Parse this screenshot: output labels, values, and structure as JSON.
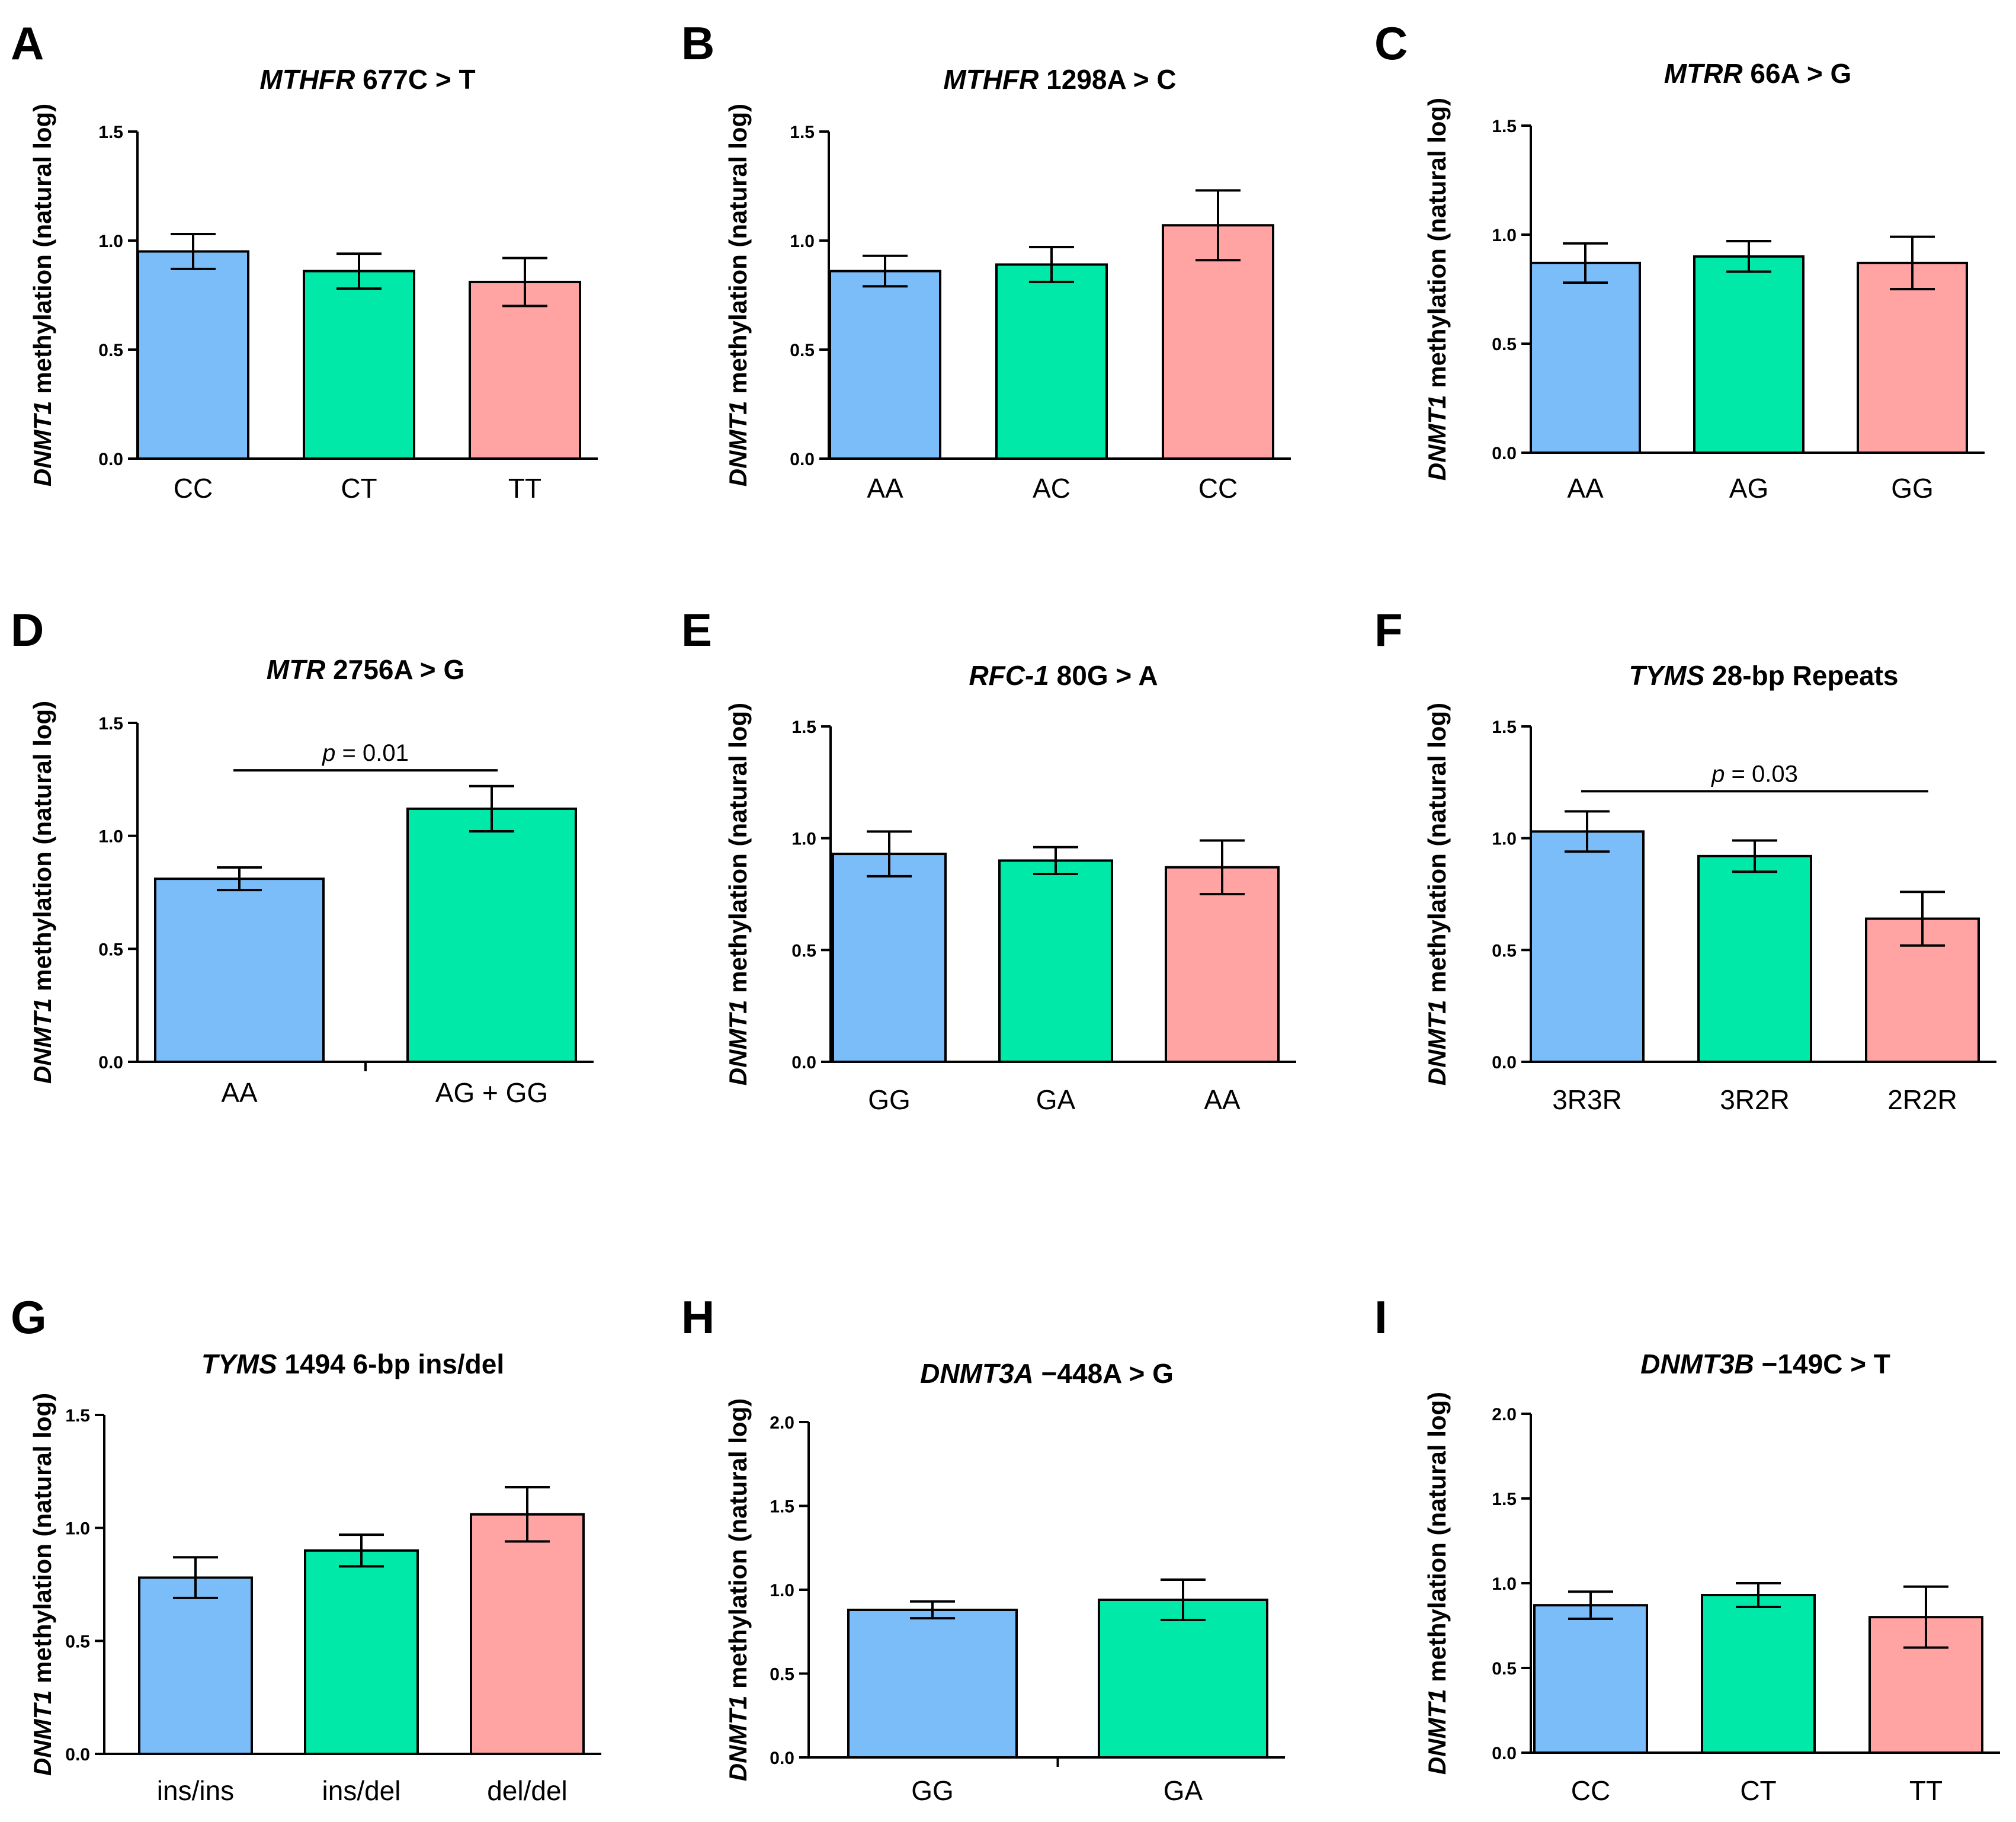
{
  "figure": {
    "ylabel_gene": "DNMT1",
    "ylabel_rest": "methylation (natural log)",
    "colors": {
      "blue": "#7bbdf9",
      "green": "#00e9a8",
      "pink": "#ffa3a3",
      "axis": "#000000"
    }
  },
  "chart_data": [
    {
      "panel": "A",
      "type": "bar",
      "title_gene": "MTHFR",
      "title_rest": " 677C > T",
      "ylabel": "DNMT1 methylation (natural log)",
      "ylim": [
        0,
        1.5
      ],
      "yticks": [
        "0.0",
        "0.5",
        "1.0",
        "1.5"
      ],
      "ytick_values": [
        0,
        0.5,
        1.0,
        1.5
      ],
      "categories": [
        "CC",
        "CT",
        "TT"
      ],
      "values": [
        0.95,
        0.86,
        0.81
      ],
      "errors": [
        0.08,
        0.08,
        0.11
      ],
      "colors": [
        "blue",
        "green",
        "pink"
      ],
      "annotation": null
    },
    {
      "panel": "B",
      "type": "bar",
      "title_gene": "MTHFR",
      "title_rest": " 1298A > C",
      "ylabel": "DNMT1 methylation (natural log)",
      "ylim": [
        0,
        1.5
      ],
      "yticks": [
        "0.0",
        "0.5",
        "1.0",
        "1.5"
      ],
      "ytick_values": [
        0,
        0.5,
        1.0,
        1.5
      ],
      "categories": [
        "AA",
        "AC",
        "CC"
      ],
      "values": [
        0.86,
        0.89,
        1.07
      ],
      "errors": [
        0.07,
        0.08,
        0.16
      ],
      "colors": [
        "blue",
        "green",
        "pink"
      ],
      "annotation": null
    },
    {
      "panel": "C",
      "type": "bar",
      "title_gene": "MTRR",
      "title_rest": " 66A > G",
      "ylabel": "DNMT1 methylation (natural log)",
      "ylim": [
        0,
        1.5
      ],
      "yticks": [
        "0.0",
        "0.5",
        "1.0",
        "1.5"
      ],
      "ytick_values": [
        0,
        0.5,
        1.0,
        1.5
      ],
      "categories": [
        "AA",
        "AG",
        "GG"
      ],
      "values": [
        0.87,
        0.9,
        0.87
      ],
      "errors": [
        0.09,
        0.07,
        0.12
      ],
      "colors": [
        "blue",
        "green",
        "pink"
      ],
      "annotation": null
    },
    {
      "panel": "D",
      "type": "bar",
      "title_gene": "MTR",
      "title_rest": " 2756A > G",
      "ylabel": "DNMT1 methylation (natural log)",
      "ylim": [
        0,
        1.5
      ],
      "yticks": [
        "0.0",
        "0.5",
        "1.0",
        "1.5"
      ],
      "ytick_values": [
        0,
        0.5,
        1.0,
        1.5
      ],
      "categories": [
        "AA",
        "AG + GG"
      ],
      "values": [
        0.81,
        1.12
      ],
      "errors": [
        0.05,
        0.1
      ],
      "colors": [
        "blue",
        "green"
      ],
      "annotation": {
        "p_label": "p",
        "p_value": " = 0.01",
        "from": 0,
        "to": 1,
        "y": 1.29
      }
    },
    {
      "panel": "E",
      "type": "bar",
      "title_gene": "RFC-1",
      "title_rest": " 80G > A",
      "ylabel": "DNMT1 methylation (natural log)",
      "ylim": [
        0,
        1.5
      ],
      "yticks": [
        "0.0",
        "0.5",
        "1.0",
        "1.5"
      ],
      "ytick_values": [
        0,
        0.5,
        1.0,
        1.5
      ],
      "categories": [
        "GG",
        "GA",
        "AA"
      ],
      "values": [
        0.93,
        0.9,
        0.87
      ],
      "errors": [
        0.1,
        0.06,
        0.12
      ],
      "colors": [
        "blue",
        "green",
        "pink"
      ],
      "annotation": null
    },
    {
      "panel": "F",
      "type": "bar",
      "title_gene": "TYMS",
      "title_rest": " 28-bp Repeats",
      "ylabel": "DNMT1 methylation (natural log)",
      "ylim": [
        0,
        1.5
      ],
      "yticks": [
        "0.0",
        "0.5",
        "1.0",
        "1.5"
      ],
      "ytick_values": [
        0,
        0.5,
        1.0,
        1.5
      ],
      "categories": [
        "3R3R",
        "3R2R",
        "2R2R"
      ],
      "values": [
        1.03,
        0.92,
        0.64
      ],
      "errors": [
        0.09,
        0.07,
        0.12
      ],
      "colors": [
        "blue",
        "green",
        "pink"
      ],
      "annotation": {
        "p_label": "p",
        "p_value": " = 0.03",
        "from": 0,
        "to": 2,
        "y": 1.21
      }
    },
    {
      "panel": "G",
      "type": "bar",
      "title_gene": "TYMS",
      "title_rest": " 1494 6-bp  ins/del",
      "ylabel": "DNMT1 methylation (natural log)",
      "ylim": [
        0,
        1.5
      ],
      "yticks": [
        "0.0",
        "0.5",
        "1.0",
        "1.5"
      ],
      "ytick_values": [
        0,
        0.5,
        1.0,
        1.5
      ],
      "categories": [
        "ins/ins",
        "ins/del",
        "del/del"
      ],
      "values": [
        0.78,
        0.9,
        1.06
      ],
      "errors": [
        0.09,
        0.07,
        0.12
      ],
      "colors": [
        "blue",
        "green",
        "pink"
      ],
      "annotation": null
    },
    {
      "panel": "H",
      "type": "bar",
      "title_gene": "DNMT3A",
      "title_rest": "  −448A > G",
      "ylabel": "DNMT1 methylation (natural log)",
      "ylim": [
        0,
        2.0
      ],
      "yticks": [
        "0.0",
        "0.5",
        "1.0",
        "1.5",
        "2.0"
      ],
      "ytick_values": [
        0,
        0.5,
        1.0,
        1.5,
        2.0
      ],
      "categories": [
        "GG",
        "GA"
      ],
      "values": [
        0.88,
        0.94
      ],
      "errors": [
        0.05,
        0.12
      ],
      "colors": [
        "blue",
        "green"
      ],
      "annotation": null
    },
    {
      "panel": "I",
      "type": "bar",
      "title_gene": "DNMT3B",
      "title_rest": "  −149C > T",
      "ylabel": "DNMT1 methylation (natural log)",
      "ylim": [
        0,
        2.0
      ],
      "yticks": [
        "0.0",
        "0.5",
        "1.0",
        "1.5",
        "2.0"
      ],
      "ytick_values": [
        0,
        0.5,
        1.0,
        1.5,
        2.0
      ],
      "categories": [
        "CC",
        "CT",
        "TT"
      ],
      "values": [
        0.87,
        0.93,
        0.8
      ],
      "errors": [
        0.08,
        0.07,
        0.18
      ],
      "colors": [
        "blue",
        "green",
        "pink"
      ],
      "annotation": null
    }
  ]
}
